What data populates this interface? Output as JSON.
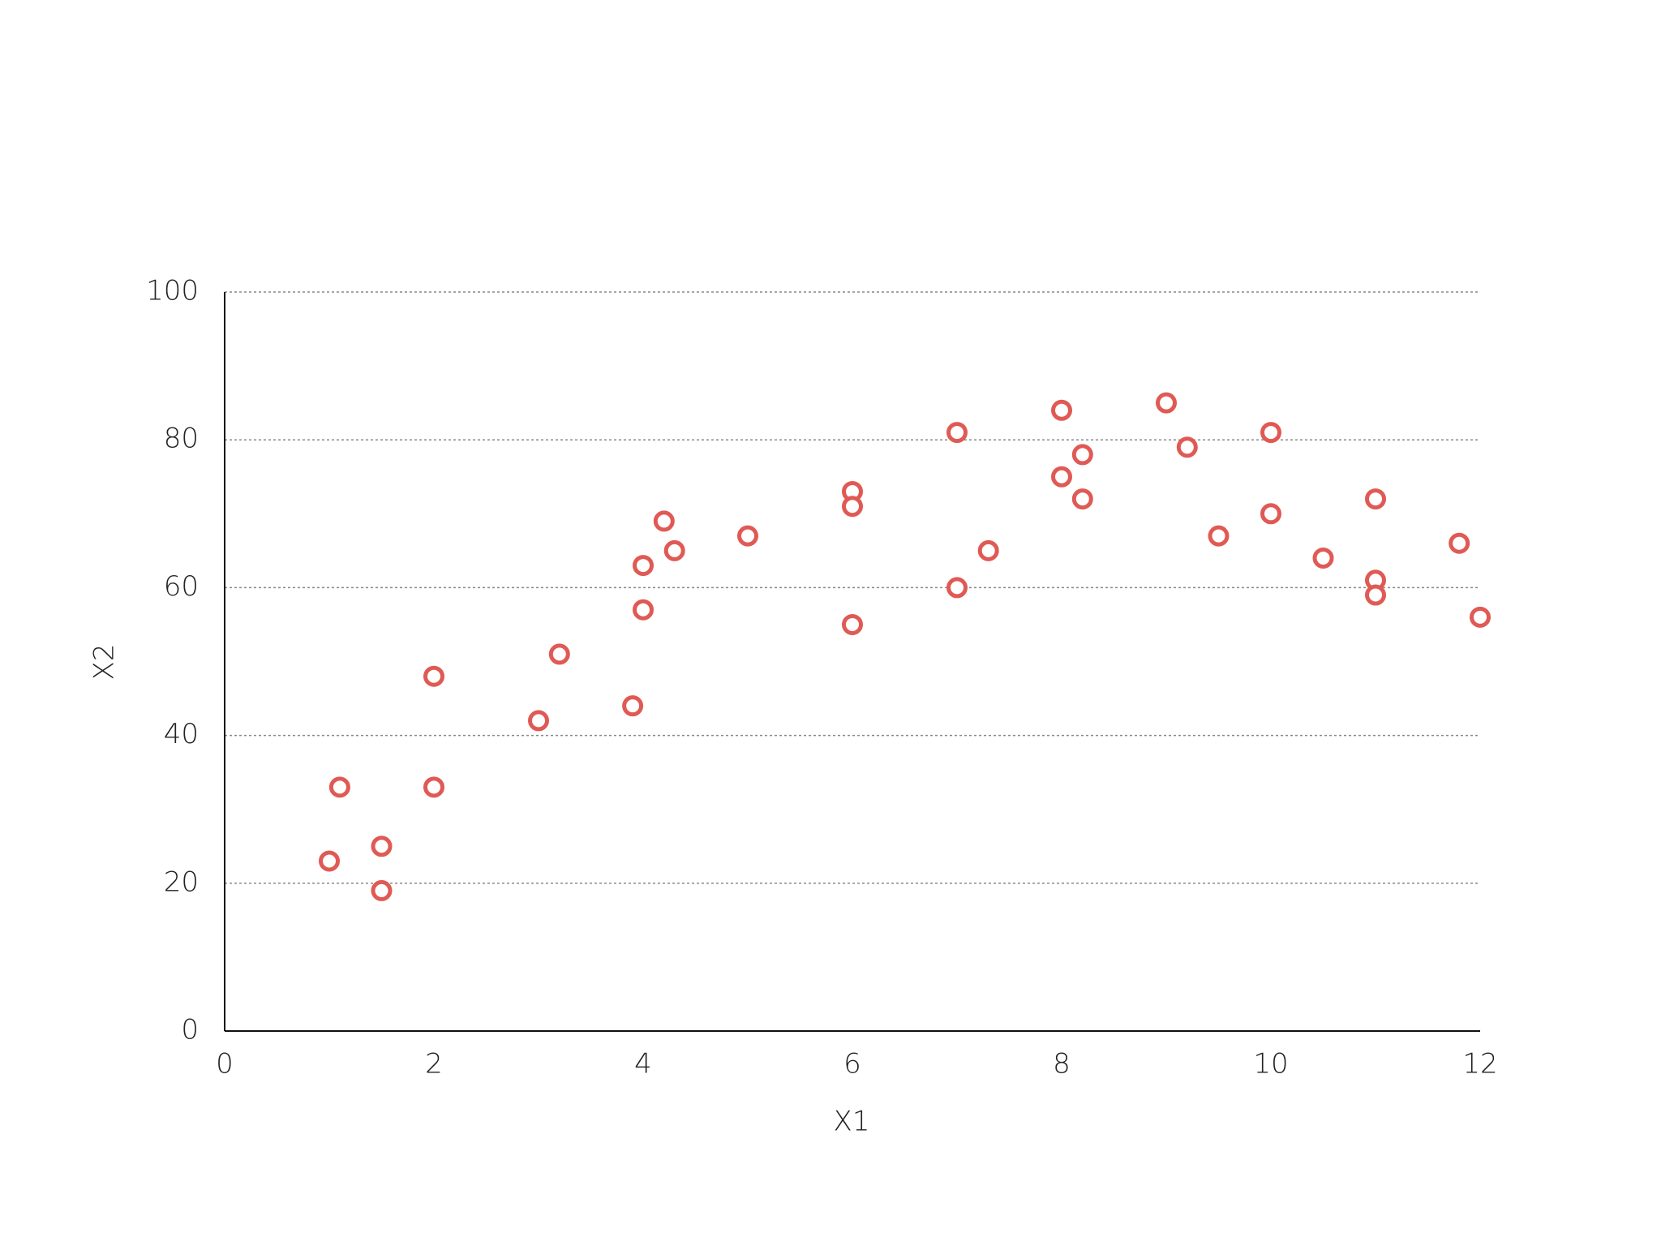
{
  "chart_data": {
    "type": "scatter",
    "x_label": "X1",
    "y_label": "X2",
    "x": [
      1,
      1.1,
      1.5,
      1.5,
      2,
      2,
      3,
      3.2,
      3.9,
      4,
      4,
      4.2,
      4.3,
      5,
      6,
      6,
      6,
      7,
      7,
      7.3,
      8,
      8,
      8.2,
      8.2,
      9,
      9.2,
      9.5,
      10,
      10,
      10.5,
      11,
      11,
      11,
      11.8,
      12
    ],
    "values": [
      23,
      33,
      25,
      19,
      48,
      33,
      42,
      51,
      44,
      63,
      57,
      69,
      65,
      67,
      73,
      71,
      55,
      81,
      60,
      65,
      84,
      75,
      78,
      72,
      85,
      79,
      67,
      81,
      70,
      64,
      72,
      61,
      59,
      66,
      56
    ],
    "color": "#e05a55",
    "xlim": [
      0,
      12
    ],
    "xticks": [
      0,
      2,
      4,
      6,
      8,
      10,
      12
    ],
    "ylim": [
      0,
      100
    ],
    "yticks": [
      0,
      20,
      40,
      60,
      80,
      100
    ],
    "grid": true
  }
}
